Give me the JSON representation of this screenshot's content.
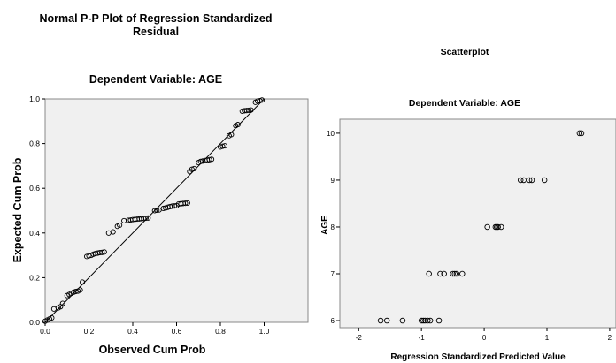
{
  "chart_data": [
    {
      "type": "scatter",
      "title_lines": [
        "Normal P-P Plot of Regression Standardized",
        "Residual"
      ],
      "subtitle": "Dependent Variable: AGE",
      "xlabel": "Observed Cum Prob",
      "ylabel": "Expected Cum Prob",
      "xlim": [
        0,
        1.2
      ],
      "ylim": [
        0,
        1.0
      ],
      "xticks": [
        "0.0",
        "0.2",
        "0.4",
        "0.6",
        "0.8",
        "1.0"
      ],
      "yticks": [
        "0.0",
        "0.2",
        "0.4",
        "0.6",
        "0.8",
        "1.0"
      ],
      "xtick_values": [
        0.0,
        0.2,
        0.4,
        0.6,
        0.8,
        1.0
      ],
      "ytick_values": [
        0.0,
        0.2,
        0.4,
        0.6,
        0.8,
        1.0
      ],
      "reference_line": [
        [
          0,
          0
        ],
        [
          1,
          1
        ]
      ],
      "points": [
        [
          0.0,
          0.005
        ],
        [
          0.01,
          0.01
        ],
        [
          0.02,
          0.015
        ],
        [
          0.03,
          0.02
        ],
        [
          0.04,
          0.06
        ],
        [
          0.06,
          0.065
        ],
        [
          0.07,
          0.07
        ],
        [
          0.08,
          0.085
        ],
        [
          0.1,
          0.12
        ],
        [
          0.11,
          0.125
        ],
        [
          0.12,
          0.13
        ],
        [
          0.13,
          0.135
        ],
        [
          0.14,
          0.138
        ],
        [
          0.15,
          0.14
        ],
        [
          0.16,
          0.145
        ],
        [
          0.17,
          0.18
        ],
        [
          0.19,
          0.295
        ],
        [
          0.2,
          0.298
        ],
        [
          0.21,
          0.3
        ],
        [
          0.22,
          0.305
        ],
        [
          0.23,
          0.308
        ],
        [
          0.24,
          0.31
        ],
        [
          0.25,
          0.312
        ],
        [
          0.26,
          0.313
        ],
        [
          0.27,
          0.315
        ],
        [
          0.29,
          0.4
        ],
        [
          0.31,
          0.405
        ],
        [
          0.33,
          0.43
        ],
        [
          0.34,
          0.435
        ],
        [
          0.36,
          0.455
        ],
        [
          0.38,
          0.457
        ],
        [
          0.39,
          0.458
        ],
        [
          0.4,
          0.46
        ],
        [
          0.41,
          0.461
        ],
        [
          0.42,
          0.462
        ],
        [
          0.43,
          0.463
        ],
        [
          0.44,
          0.464
        ],
        [
          0.45,
          0.465
        ],
        [
          0.46,
          0.466
        ],
        [
          0.47,
          0.467
        ],
        [
          0.5,
          0.5
        ],
        [
          0.51,
          0.502
        ],
        [
          0.52,
          0.503
        ],
        [
          0.54,
          0.51
        ],
        [
          0.55,
          0.512
        ],
        [
          0.56,
          0.515
        ],
        [
          0.57,
          0.518
        ],
        [
          0.58,
          0.52
        ],
        [
          0.59,
          0.521
        ],
        [
          0.6,
          0.522
        ],
        [
          0.61,
          0.53
        ],
        [
          0.62,
          0.531
        ],
        [
          0.63,
          0.532
        ],
        [
          0.64,
          0.533
        ],
        [
          0.65,
          0.534
        ],
        [
          0.66,
          0.675
        ],
        [
          0.67,
          0.685
        ],
        [
          0.68,
          0.688
        ],
        [
          0.7,
          0.715
        ],
        [
          0.71,
          0.72
        ],
        [
          0.72,
          0.722
        ],
        [
          0.73,
          0.724
        ],
        [
          0.74,
          0.726
        ],
        [
          0.75,
          0.728
        ],
        [
          0.76,
          0.73
        ],
        [
          0.8,
          0.785
        ],
        [
          0.81,
          0.788
        ],
        [
          0.82,
          0.79
        ],
        [
          0.84,
          0.835
        ],
        [
          0.85,
          0.84
        ],
        [
          0.87,
          0.88
        ],
        [
          0.88,
          0.885
        ],
        [
          0.9,
          0.945
        ],
        [
          0.91,
          0.947
        ],
        [
          0.92,
          0.948
        ],
        [
          0.93,
          0.949
        ],
        [
          0.94,
          0.95
        ],
        [
          0.96,
          0.985
        ],
        [
          0.97,
          0.99
        ],
        [
          0.98,
          0.992
        ],
        [
          0.99,
          0.995
        ]
      ]
    },
    {
      "type": "scatter",
      "title": "Scatterplot",
      "subtitle": "Dependent Variable: AGE",
      "xlabel": "Regression Standardized Predicted Value",
      "ylabel": "AGE",
      "xlim": [
        -2.3,
        2.1
      ],
      "ylim": [
        5.85,
        10.3
      ],
      "xticks": [
        "-2",
        "-1",
        "0",
        "1",
        "2"
      ],
      "yticks": [
        "6",
        "7",
        "8",
        "9",
        "10"
      ],
      "xtick_values": [
        -2,
        -1,
        0,
        1,
        2
      ],
      "ytick_values": [
        6,
        7,
        8,
        9,
        10
      ],
      "points": [
        [
          -1.65,
          6
        ],
        [
          -1.55,
          6
        ],
        [
          -1.3,
          6
        ],
        [
          -1.0,
          6
        ],
        [
          -0.97,
          6
        ],
        [
          -0.94,
          6
        ],
        [
          -0.9,
          6
        ],
        [
          -0.86,
          6
        ],
        [
          -0.72,
          6
        ],
        [
          -0.88,
          7
        ],
        [
          -0.7,
          7
        ],
        [
          -0.64,
          7
        ],
        [
          -0.5,
          7
        ],
        [
          -0.47,
          7
        ],
        [
          -0.44,
          7
        ],
        [
          -0.35,
          7
        ],
        [
          0.05,
          8
        ],
        [
          0.18,
          8
        ],
        [
          0.2,
          8
        ],
        [
          0.22,
          8
        ],
        [
          0.27,
          8
        ],
        [
          0.58,
          9
        ],
        [
          0.63,
          9
        ],
        [
          0.72,
          9
        ],
        [
          0.76,
          9
        ],
        [
          0.96,
          9
        ],
        [
          1.52,
          10
        ],
        [
          1.55,
          10
        ]
      ]
    }
  ]
}
